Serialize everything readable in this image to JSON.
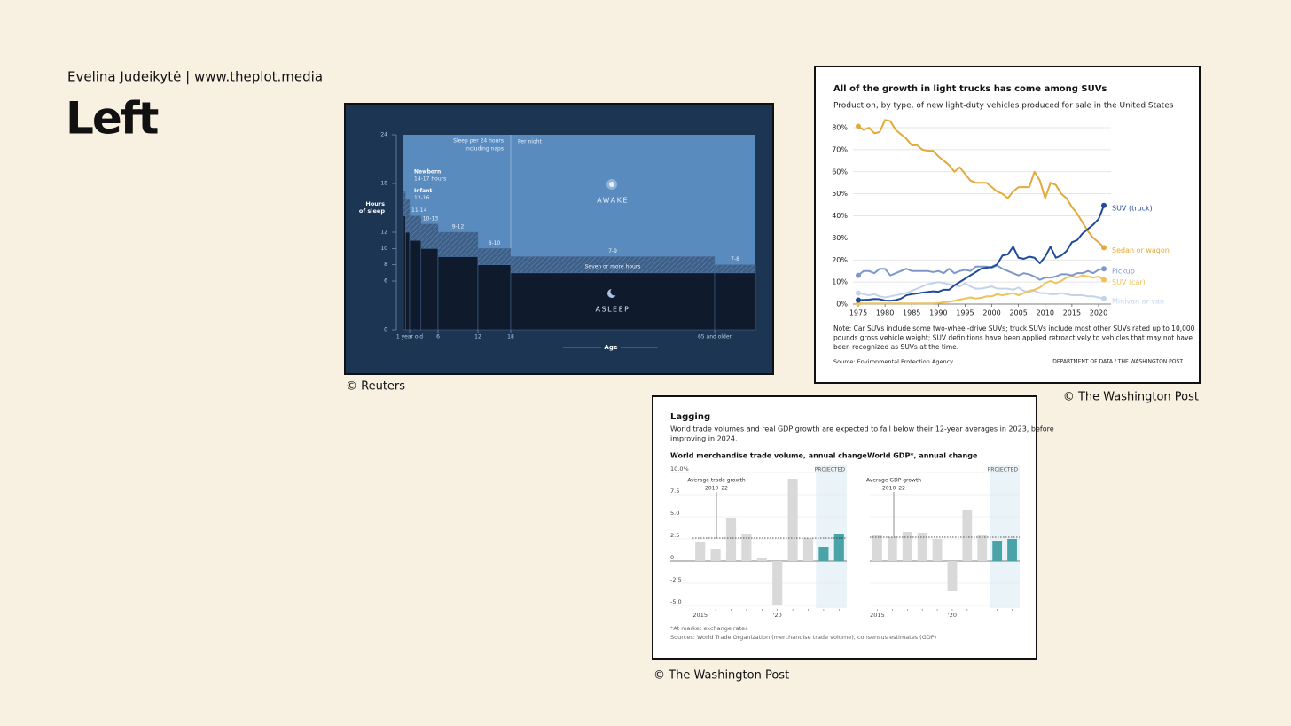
{
  "header": {
    "author": "Evelina Judeikytė | www.theplot.media",
    "title": "Left"
  },
  "credits": [
    "© Reuters",
    "© The Washington Post",
    "© The Washington Post"
  ],
  "panel": {
    "title": "Lagging",
    "subtitle": [
      "World trade volumes and real GDP growth are expected to fall below their 12-year averages in 2023, before",
      "improving in 2024."
    ],
    "footnotes": [
      "*At market exchange rates",
      "Sources: World Trade Organization (merchandise trade volume); consensus estimates (GDP)"
    ]
  },
  "chart_data": [
    {
      "type": "band",
      "ylabel": [
        "Hours",
        "of sleep"
      ],
      "xlabel": "Age",
      "xlim": [
        0,
        74
      ],
      "xticks": [
        {
          "value": 1,
          "label": "1 year old"
        },
        6,
        12,
        18,
        {
          "value": 65,
          "label": "65 and older"
        }
      ],
      "ylim": [
        0,
        24
      ],
      "yticks": [
        0,
        6,
        8,
        10,
        12,
        18,
        24
      ],
      "annotations": {
        "naps": [
          "Sleep per 24 hours",
          "including naps"
        ],
        "per_night": "Per night",
        "awake": "AWAKE",
        "asleep": "ASLEEP",
        "seven": "Seven or more hours"
      },
      "bands": [
        {
          "name": "Newborn",
          "label": "14-17 hours",
          "x0": 0,
          "x1": 0.33,
          "low": 14,
          "high": 17
        },
        {
          "name": "Infant",
          "label": "12-16",
          "x0": 0.33,
          "x1": 1,
          "low": 12,
          "high": 16
        },
        {
          "label": "11-14",
          "x0": 1,
          "x1": 3,
          "low": 11,
          "high": 14
        },
        {
          "label": "10-13",
          "x0": 3,
          "x1": 6,
          "low": 10,
          "high": 13
        },
        {
          "label": "9-12",
          "x0": 6,
          "x1": 12,
          "low": 9,
          "high": 12
        },
        {
          "label": "8-10",
          "x0": 12,
          "x1": 18,
          "low": 8,
          "high": 10
        },
        {
          "label": "7-9",
          "x0": 18,
          "x1": 65,
          "low": 7,
          "high": 9
        },
        {
          "label": "7-8",
          "x0": 65,
          "x1": 74,
          "low": 7,
          "high": 8
        }
      ]
    },
    {
      "type": "line",
      "title": "All of the growth in light trucks has come among SUVs",
      "subtitle": "Production, by type, of new light-duty vehicles produced for sale in the United States",
      "note": [
        "Note: Car SUVs include some two-wheel-drive SUVs; truck SUVs include most other SUVs rated up to 10,000",
        "pounds gross vehicle weight; SUV definitions have been applied retroactively to vehicles that may not have",
        "been recognized as SUVs at the time."
      ],
      "source": "Source: Environmental Protection Agency",
      "credit": "DEPARTMENT OF DATA / THE WASHINGTON POST",
      "grid": true,
      "xlim": [
        1975,
        2021
      ],
      "xticks": [
        1975,
        1980,
        1985,
        1990,
        1995,
        2000,
        2005,
        2010,
        2015,
        2020
      ],
      "ylim": [
        0,
        80
      ],
      "yticks": [
        {
          "value": 0,
          "label": "0%"
        },
        {
          "value": 10,
          "label": "10%"
        },
        {
          "value": 20,
          "label": "20%"
        },
        {
          "value": 30,
          "label": "30%"
        },
        {
          "value": 40,
          "label": "40%"
        },
        {
          "value": 50,
          "label": "50%"
        },
        {
          "value": 60,
          "label": "60%"
        },
        {
          "value": 70,
          "label": "70%"
        },
        {
          "value": 80,
          "label": "80%"
        }
      ],
      "x": [
        1975,
        1976,
        1977,
        1978,
        1979,
        1980,
        1981,
        1982,
        1983,
        1984,
        1985,
        1986,
        1987,
        1988,
        1989,
        1990,
        1991,
        1992,
        1993,
        1994,
        1995,
        1996,
        1997,
        1998,
        1999,
        2000,
        2001,
        2002,
        2003,
        2004,
        2005,
        2006,
        2007,
        2008,
        2009,
        2010,
        2011,
        2012,
        2013,
        2014,
        2015,
        2016,
        2017,
        2018,
        2019,
        2020,
        2021
      ],
      "series": [
        {
          "name": "Minivan or van",
          "color": "#c3d4ea",
          "values": [
            5,
            4.5,
            4,
            4.5,
            3.5,
            3,
            3.5,
            4,
            4.5,
            5,
            6,
            7,
            8,
            9,
            9.5,
            10,
            9.5,
            9,
            8.5,
            8,
            9.5,
            8,
            7,
            7,
            7.5,
            8,
            7,
            7,
            7,
            6.5,
            7.5,
            6,
            5.5,
            6,
            5,
            5,
            4.5,
            4.5,
            5,
            4.5,
            4,
            4,
            4,
            3.5,
            3.5,
            3,
            2.5
          ]
        },
        {
          "name": "SUV (car)",
          "color": "#efc25c",
          "values": [
            0.3,
            0.3,
            0.3,
            0.3,
            0.3,
            0.3,
            0.3,
            0.3,
            0.3,
            0.3,
            0.3,
            0.3,
            0.3,
            0.3,
            0.3,
            0.5,
            0.8,
            1,
            1.5,
            2,
            2.5,
            3,
            2.5,
            2.8,
            3.5,
            3.5,
            4.5,
            4,
            4.5,
            5,
            4,
            5,
            6,
            6.5,
            7.5,
            9.5,
            10.5,
            9.5,
            10.5,
            12,
            12.5,
            12,
            13,
            12.5,
            12,
            12.5,
            11
          ]
        },
        {
          "name": "Pickup",
          "color": "#7f98cb",
          "values": [
            13,
            15,
            15,
            14,
            16,
            16,
            13,
            14,
            15,
            16,
            15,
            15,
            15,
            15,
            14.5,
            15,
            14,
            16,
            14,
            15,
            15.5,
            15,
            17,
            17,
            17,
            16.5,
            17.5,
            16,
            15,
            14,
            13,
            14,
            13.5,
            12.5,
            11,
            12,
            12,
            12.5,
            13.5,
            13.5,
            13,
            14,
            14,
            15,
            14,
            15.5,
            16
          ]
        },
        {
          "name": "Sedan or wagon",
          "color": "#e2aa3a",
          "values": [
            80.6,
            79,
            80,
            77.5,
            78,
            83.5,
            83,
            79,
            77,
            75,
            72,
            72,
            70,
            69.5,
            69.5,
            67,
            65,
            63,
            60,
            62,
            59,
            56,
            55,
            55,
            55,
            53,
            51,
            50,
            48,
            51,
            53,
            53,
            53,
            60,
            56,
            48,
            55,
            54,
            50,
            48,
            44,
            41,
            37,
            33,
            30,
            28,
            25.6
          ]
        },
        {
          "name": "SUV (truck)",
          "color": "#1f4b9c",
          "values": [
            1.8,
            1.9,
            2,
            2.3,
            2.2,
            1.6,
            1.5,
            1.8,
            2.5,
            4,
            4.5,
            4.8,
            5.2,
            5.5,
            5.8,
            5.6,
            6.5,
            6.5,
            8.5,
            10,
            11.5,
            13,
            14.5,
            16,
            16.5,
            16.8,
            18,
            22,
            22.5,
            26,
            21,
            20.5,
            21.5,
            21,
            18.5,
            21.5,
            26,
            21,
            22,
            24,
            28,
            29,
            32,
            34,
            36,
            38.5,
            44.7
          ]
        }
      ]
    },
    {
      "type": "bar",
      "title": "World merchandise trade volume, annual change",
      "categories": [
        "2015",
        null,
        null,
        null,
        null,
        "'20",
        null,
        null,
        null,
        null
      ],
      "values": [
        2.2,
        1.4,
        4.9,
        3.1,
        0.3,
        -5.0,
        9.3,
        2.6,
        1.6,
        3.1
      ],
      "color": "#d9d9d9",
      "bar_colors": [
        "#d9d9d9",
        "#d9d9d9",
        "#d9d9d9",
        "#d9d9d9",
        "#d9d9d9",
        "#d9d9d9",
        "#d9d9d9",
        "#d9d9d9",
        "#4aa3a6",
        "#4aa3a6"
      ],
      "ylim": [
        -5,
        10
      ],
      "yticks": [
        {
          "value": 10,
          "label": "10.0%"
        },
        7.5,
        {
          "value": 5,
          "label": "5.0"
        },
        2.5,
        0,
        -2.5,
        {
          "value": -5,
          "label": "-5.0"
        }
      ],
      "show_tick_labels": true,
      "average": 2.6,
      "average_label": [
        "Average trade growth",
        "2010–22"
      ],
      "projected_label": "PROJECTED"
    },
    {
      "type": "bar",
      "title": "World GDP*, annual change",
      "categories": [
        "2015",
        null,
        null,
        null,
        null,
        "'20",
        null,
        null,
        null,
        null
      ],
      "values": [
        3.0,
        2.7,
        3.3,
        3.2,
        2.5,
        -3.4,
        5.8,
        2.9,
        2.3,
        2.5
      ],
      "color": "#d9d9d9",
      "bar_colors": [
        "#d9d9d9",
        "#d9d9d9",
        "#d9d9d9",
        "#d9d9d9",
        "#d9d9d9",
        "#d9d9d9",
        "#d9d9d9",
        "#d9d9d9",
        "#4aa3a6",
        "#4aa3a6"
      ],
      "ylim": [
        -5,
        10
      ],
      "yticks": [
        10,
        7.5,
        5,
        2.5,
        0,
        -2.5,
        -5
      ],
      "show_tick_labels": false,
      "average": 2.7,
      "average_label": [
        "Average GDP growth",
        "2010–22"
      ],
      "projected_label": "PROJECTED"
    }
  ]
}
